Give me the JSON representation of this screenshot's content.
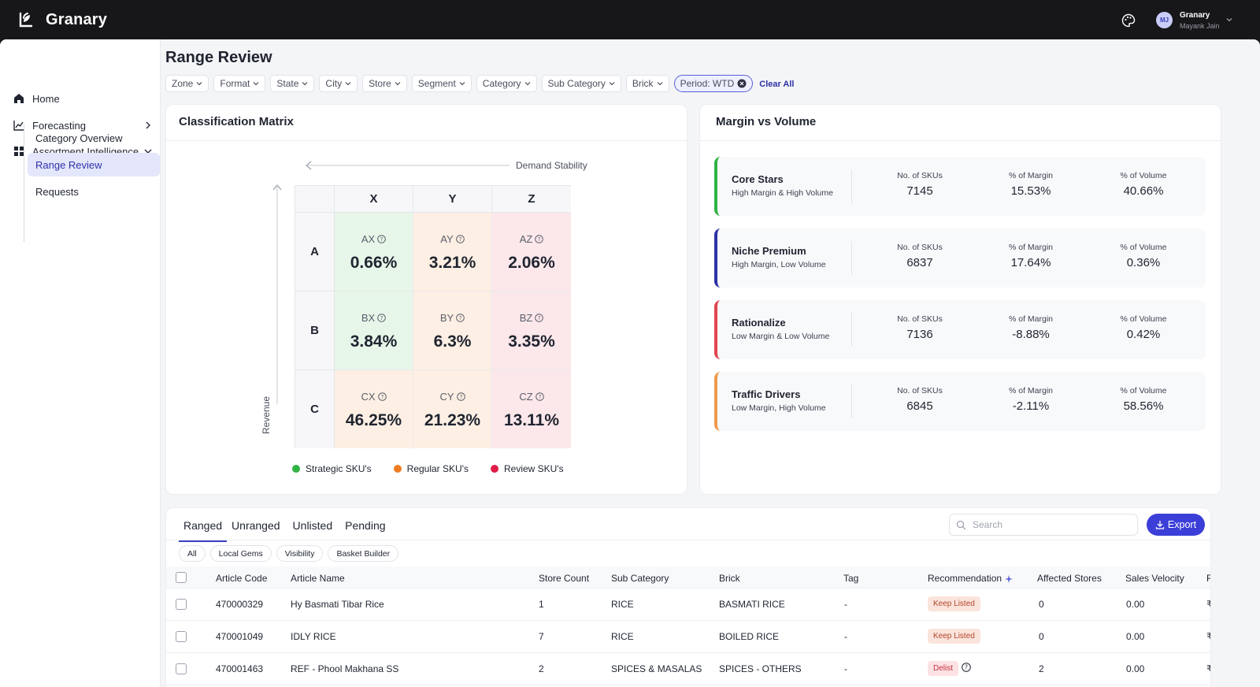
{
  "app": {
    "brand": "Granary",
    "user_org": "Granary",
    "user_name": "Mayank Jain",
    "user_initials": "MJ"
  },
  "sidebar": {
    "items": [
      {
        "label": "Home",
        "icon": "home-icon"
      },
      {
        "label": "Forecasting",
        "icon": "chart-icon"
      },
      {
        "label": "Assortment Intelligence",
        "icon": "grid-icon"
      }
    ],
    "subitems": [
      {
        "label": "Category Overview"
      },
      {
        "label": "Range Review",
        "active": true
      },
      {
        "label": "Requests"
      }
    ]
  },
  "page": {
    "title": "Range Review"
  },
  "filters": {
    "chips": [
      "Zone",
      "Format",
      "State",
      "City",
      "Store",
      "Segment",
      "Category",
      "Sub Category",
      "Brick"
    ],
    "period": "Period: WTD",
    "clear_all": "Clear All"
  },
  "classification": {
    "title": "Classification Matrix",
    "x_axis_label": "Demand Stability",
    "y_axis_label": "Revenue",
    "cols": [
      "X",
      "Y",
      "Z"
    ],
    "rows": [
      "A",
      "B",
      "C"
    ],
    "cells": [
      [
        {
          "code": "AX",
          "value": "0.66%",
          "color": "#e6f6e9"
        },
        {
          "code": "AY",
          "value": "3.21%",
          "color": "#fdefe3"
        },
        {
          "code": "AZ",
          "value": "2.06%",
          "color": "#fce7ea"
        }
      ],
      [
        {
          "code": "BX",
          "value": "3.84%",
          "color": "#e6f6e9"
        },
        {
          "code": "BY",
          "value": "6.3%",
          "color": "#fdefe3"
        },
        {
          "code": "BZ",
          "value": "3.35%",
          "color": "#fce7ea"
        }
      ],
      [
        {
          "code": "CX",
          "value": "46.25%",
          "color": "#fdefe3"
        },
        {
          "code": "CY",
          "value": "21.23%",
          "color": "#fdefe3"
        },
        {
          "code": "CZ",
          "value": "13.11%",
          "color": "#fce7ea"
        }
      ]
    ],
    "legend": [
      {
        "label": "Strategic SKU's",
        "color": "#2fb344"
      },
      {
        "label": "Regular SKU's",
        "color": "#ee7d22"
      },
      {
        "label": "Review SKU's",
        "color": "#e11d48"
      }
    ]
  },
  "margin_volume": {
    "title": "Margin vs Volume",
    "stat_labels": {
      "skus": "No. of SKUs",
      "margin": "% of Margin",
      "volume": "% of Volume"
    },
    "rows": [
      {
        "name": "Core Stars",
        "desc": "High Margin & High Volume",
        "skus": "7145",
        "margin": "15.53%",
        "volume": "40.66%",
        "color": "#2fb344"
      },
      {
        "name": "Niche Premium",
        "desc": "High Margin, Low Volume",
        "skus": "6837",
        "margin": "17.64%",
        "volume": "0.36%",
        "color": "#2e32a8"
      },
      {
        "name": "Rationalize",
        "desc": "Low Margin & Low Volume",
        "skus": "7136",
        "margin": "-8.88%",
        "volume": "0.42%",
        "color": "#e0454f"
      },
      {
        "name": "Traffic Drivers",
        "desc": "Low Margin, High Volume",
        "skus": "6845",
        "margin": "-2.11%",
        "volume": "58.56%",
        "color": "#ee9a4d"
      }
    ]
  },
  "table": {
    "tabs": [
      "Ranged",
      "Unranged",
      "Unlisted",
      "Pending"
    ],
    "active_tab": "Ranged",
    "search_placeholder": "Search",
    "export_label": "Export",
    "sub_filters": [
      "All",
      "Local Gems",
      "Visibility",
      "Basket Builder"
    ],
    "columns": [
      "Article Code",
      "Article Name",
      "Store Count",
      "Sub Category",
      "Brick",
      "Tag",
      "Recommendation",
      "Affected Stores",
      "Sales Velocity",
      "R"
    ],
    "rows": [
      {
        "code": "470000329",
        "name": "Hy Basmati Tibar Rice",
        "store_count": "1",
        "sub_category": "RICE",
        "brick": "BASMATI RICE",
        "tag": "-",
        "recommendation": "Keep Listed",
        "affected": "0",
        "velocity": "0.00",
        "r": "₹"
      },
      {
        "code": "470001049",
        "name": "IDLY RICE",
        "store_count": "7",
        "sub_category": "RICE",
        "brick": "BOILED RICE",
        "tag": "-",
        "recommendation": "Keep Listed",
        "affected": "0",
        "velocity": "0.00",
        "r": "₹"
      },
      {
        "code": "470001463",
        "name": "REF - Phool Makhana SS",
        "store_count": "2",
        "sub_category": "SPICES & MASALAS",
        "brick": "SPICES - OTHERS",
        "tag": "-",
        "recommendation": "Delist",
        "affected": "2",
        "velocity": "0.00",
        "r": "₹"
      }
    ]
  }
}
